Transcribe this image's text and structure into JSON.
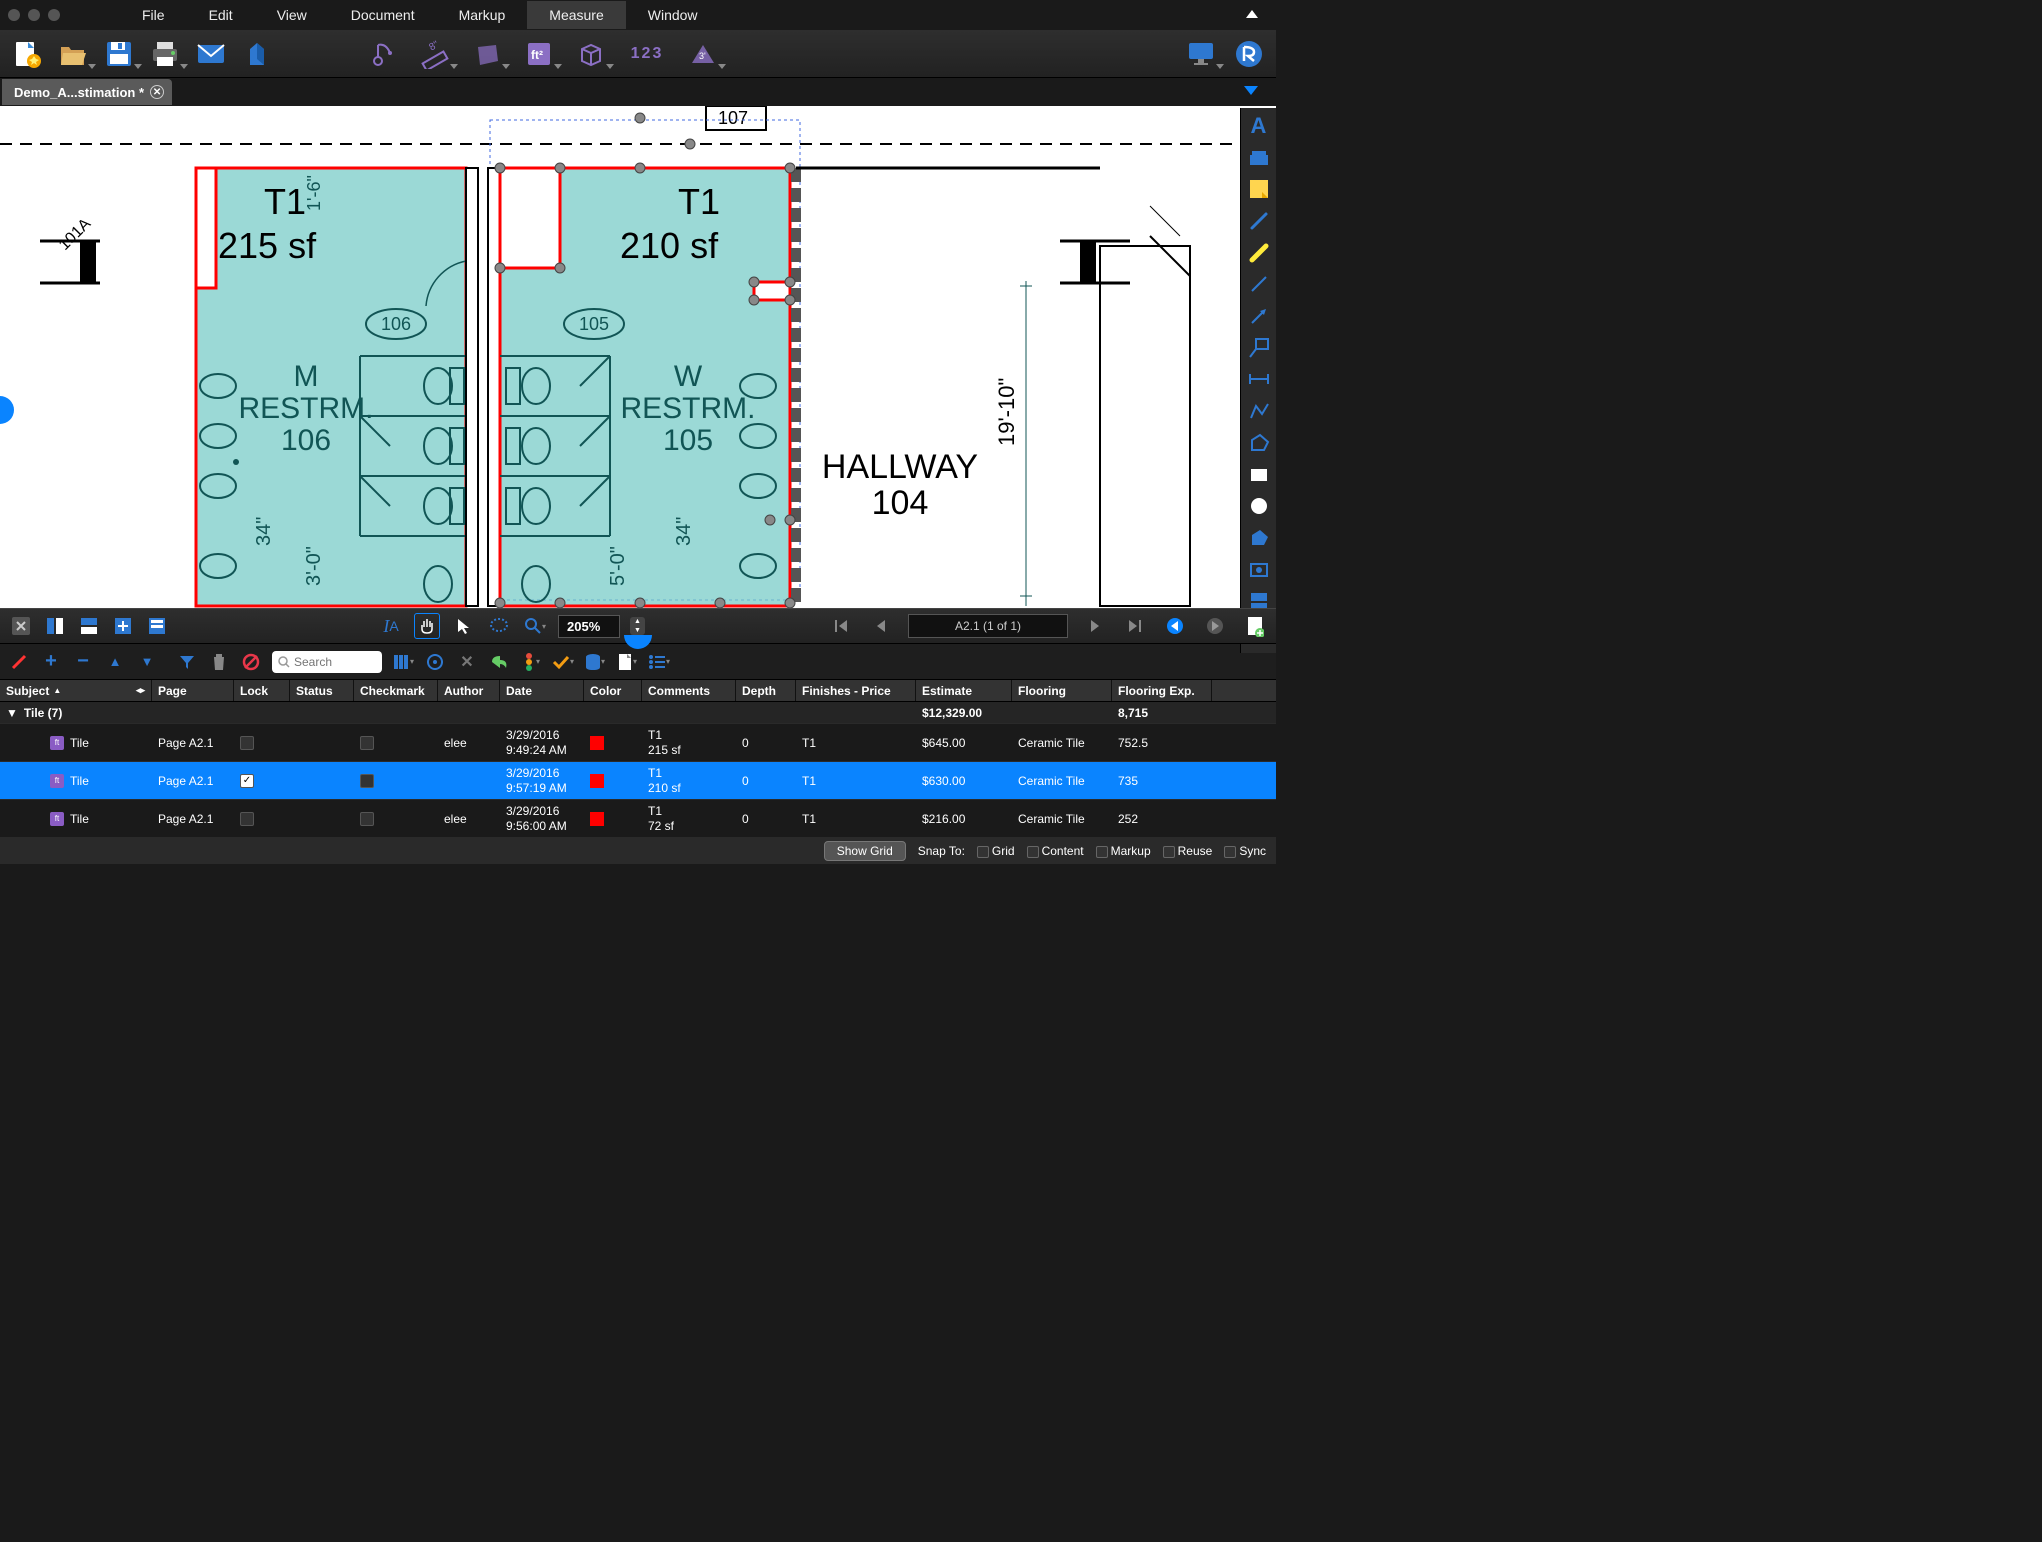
{
  "menu": {
    "items": [
      "File",
      "Edit",
      "View",
      "Document",
      "Markup",
      "Measure",
      "Window"
    ],
    "active_index": 5
  },
  "tab": {
    "title": "Demo_A...stimation *"
  },
  "zoom": "205%",
  "page_display": "A2.1 (1 of 1)",
  "search_placeholder": "Search",
  "colors": {
    "accent": "#0a84ff",
    "purple": "#8b6fc4",
    "highlight_fill": "#7accc8",
    "highlight_stroke": "#ff0000",
    "bg_dark": "#1a1a1a"
  },
  "floorplan": {
    "rooms": [
      {
        "label_line1": "M",
        "label_line2": "RESTRM.",
        "label_line3": "106",
        "measure_tag": "T1",
        "measure_val": "215 sf",
        "door_label": "106",
        "dim_v": "34\"",
        "dim_h": "3'-0\"",
        "corridor_dim": "1'-6\""
      },
      {
        "label_line1": "W",
        "label_line2": "RESTRM.",
        "label_line3": "105",
        "measure_tag": "T1",
        "measure_val": "210 sf",
        "door_label": "105",
        "dim_v": "34\"",
        "dim_h": "5'-0\""
      }
    ],
    "hallway": {
      "name": "HALLWAY",
      "number": "104",
      "dim": "19'-10\""
    },
    "top_room": "107",
    "side_room": "101A"
  },
  "markups": {
    "columns": [
      "Subject",
      "Page",
      "Lock",
      "Status",
      "Checkmark",
      "Author",
      "Date",
      "Color",
      "Comments",
      "Depth",
      "Finishes - Price",
      "Estimate",
      "Flooring",
      "Flooring Exp."
    ],
    "group": {
      "label": "Tile (7)",
      "estimate": "$12,329.00",
      "floorexp": "8,715"
    },
    "rows": [
      {
        "subject": "Tile",
        "page": "Page A2.1",
        "locked": false,
        "author": "elee",
        "date": "3/29/2016",
        "time": "9:49:24 AM",
        "color": "#ff0000",
        "comments_l1": "T1",
        "comments_l2": "215 sf",
        "depth": "0",
        "finishes": "T1",
        "estimate": "$645.00",
        "flooring": "Ceramic Tile",
        "floorexp": "752.5",
        "selected": false
      },
      {
        "subject": "Tile",
        "page": "Page A2.1",
        "locked": true,
        "author": "",
        "date": "3/29/2016",
        "time": "9:57:19 AM",
        "color": "#ff0000",
        "comments_l1": "T1",
        "comments_l2": "210 sf",
        "depth": "0",
        "finishes": "T1",
        "estimate": "$630.00",
        "flooring": "Ceramic Tile",
        "floorexp": "735",
        "selected": true
      },
      {
        "subject": "Tile",
        "page": "Page A2.1",
        "locked": false,
        "author": "elee",
        "date": "3/29/2016",
        "time": "9:56:00 AM",
        "color": "#ff0000",
        "comments_l1": "T1",
        "comments_l2": "72 sf",
        "depth": "0",
        "finishes": "T1",
        "estimate": "$216.00",
        "flooring": "Ceramic Tile",
        "floorexp": "252",
        "selected": false
      }
    ]
  },
  "statusbar": {
    "show_grid": "Show Grid",
    "snap_to": "Snap To:",
    "snaps": [
      "Grid",
      "Content",
      "Markup",
      "Reuse",
      "Sync"
    ]
  }
}
